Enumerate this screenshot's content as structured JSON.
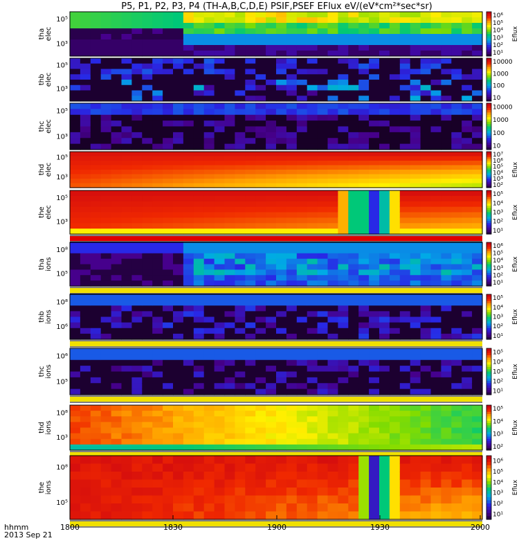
{
  "title": "P5, P1, P2, P3, P4 (TH-A,B,C,D,E) PSIF,PSEF EFlux eV/(eV*cm²*sec*sr)",
  "footer": {
    "line1": "hhmm",
    "line2": "2013 Sep 21"
  },
  "chart_data": {
    "type": "heatmap",
    "x_ticks": [
      "1800",
      "1830",
      "1900",
      "1930",
      "2000"
    ],
    "x_range": [
      "18:00",
      "20:00"
    ],
    "panels": [
      {
        "label": [
          "tha",
          "elec"
        ],
        "yticks": [
          "10⁵",
          "10³"
        ],
        "cbar_label": "Eflux",
        "cbar_ticks": [
          "10⁶",
          "10⁵",
          "10⁴",
          "10³",
          "10²",
          "10¹"
        ],
        "data_gap": [
          "18:27",
          "18:32"
        ]
      },
      {
        "label": [
          "thb",
          "elec"
        ],
        "yticks": [
          "10⁵",
          "10³"
        ],
        "cbar_label": "",
        "cbar_ticks": [
          "10000",
          "1000",
          "100",
          "10"
        ]
      },
      {
        "label": [
          "thc",
          "elec"
        ],
        "yticks": [
          "10⁵",
          "10³"
        ],
        "cbar_label": "",
        "cbar_ticks": [
          "10000",
          "1000",
          "100",
          "10"
        ]
      },
      {
        "label": [
          "thd",
          "elec"
        ],
        "yticks": [
          "10⁵",
          "10³"
        ],
        "cbar_label": "Eflux",
        "cbar_ticks": [
          "10⁷",
          "10⁶",
          "10⁵",
          "10⁴",
          "10³",
          "10²"
        ]
      },
      {
        "label": [
          "the",
          "elec"
        ],
        "yticks": [
          "10⁵",
          "10³"
        ],
        "cbar_label": "Eflux",
        "cbar_ticks": [
          "10⁵",
          "10⁴",
          "10³",
          "10²",
          "10¹"
        ]
      },
      {
        "label": [
          "tha",
          "ions"
        ],
        "yticks": [
          "10⁸",
          "10⁵"
        ],
        "cbar_label": "Eflux",
        "cbar_ticks": [
          "10⁶",
          "10⁵",
          "10⁴",
          "10³",
          "10²",
          "10¹"
        ]
      },
      {
        "label": [
          "thb",
          "ions"
        ],
        "yticks": [
          "10⁸",
          "10⁶"
        ],
        "cbar_label": "Eflux",
        "cbar_ticks": [
          "10⁵",
          "10⁴",
          "10³",
          "10²",
          "10¹"
        ]
      },
      {
        "label": [
          "thc",
          "ions"
        ],
        "yticks": [
          "10⁶",
          "10⁵"
        ],
        "cbar_label": "Eflux",
        "cbar_ticks": [
          "10⁵",
          "10⁴",
          "10³",
          "10²",
          "10¹"
        ]
      },
      {
        "label": [
          "thd",
          "ions"
        ],
        "yticks": [
          "10⁸",
          "10³"
        ],
        "cbar_label": "Eflux",
        "cbar_ticks": [
          "10⁵",
          "10⁴",
          "10³",
          "10²"
        ]
      },
      {
        "label": [
          "the",
          "ions"
        ],
        "yticks": [
          "10⁸",
          "10⁵"
        ],
        "cbar_label": "Eflux",
        "cbar_ticks": [
          "10⁶",
          "10⁵",
          "10⁴",
          "10³",
          "10²",
          "10¹"
        ]
      }
    ]
  }
}
